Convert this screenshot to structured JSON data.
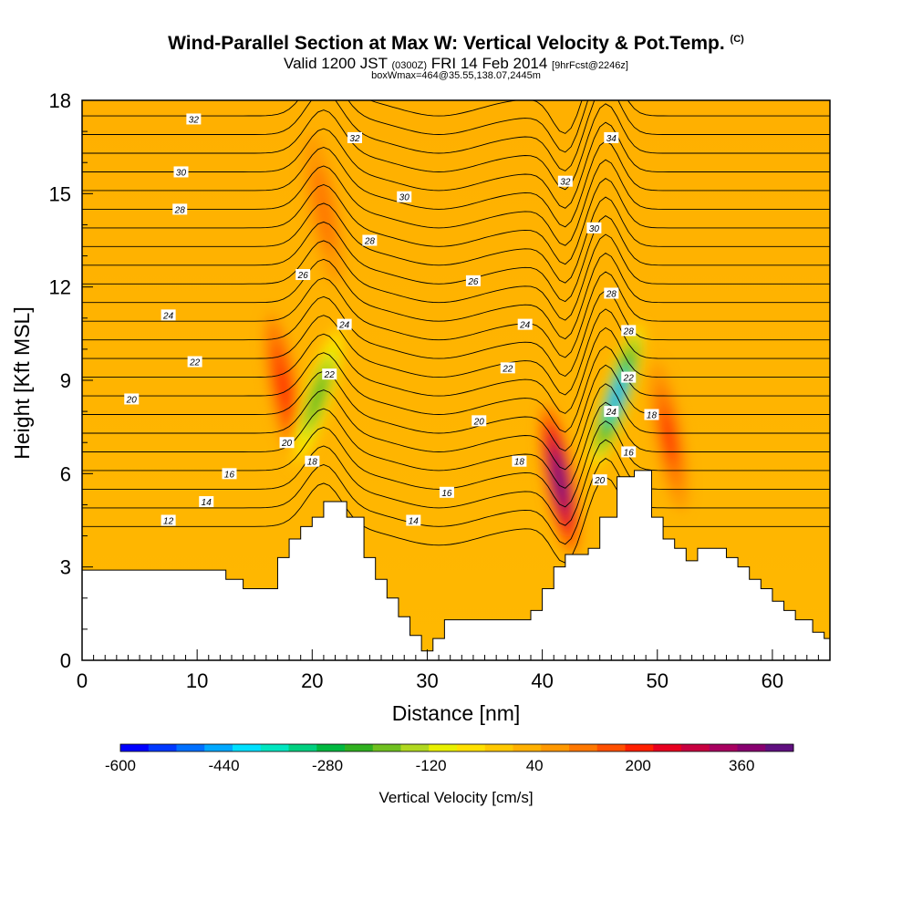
{
  "header": {
    "title": "Wind-Parallel Section at Max W: Vertical Velocity & Pot.Temp.",
    "title_mark": "(C)",
    "valid_prefix": "Valid 1200 JST",
    "valid_utc": "(0300Z)",
    "valid_date": "FRI 14 Feb 2014",
    "forecast_info": "[9hrFcst@2246z]",
    "box_info": "boxWmax=464@35.55,138.07,2445m"
  },
  "chart_data": {
    "type": "heatmap",
    "xlabel": "Distance [nm]",
    "ylabel": "Height [Kft MSL]",
    "xlim": [
      0,
      65
    ],
    "ylim": [
      0,
      18
    ],
    "x_ticks": [
      0,
      10,
      20,
      30,
      40,
      50,
      60
    ],
    "y_ticks": [
      0,
      3,
      6,
      9,
      12,
      15,
      18
    ],
    "colorbar": {
      "title": "Vertical Velocity [cm/s]",
      "ticks": [
        -600,
        -440,
        -280,
        -120,
        40,
        200,
        360
      ],
      "range": [
        -600,
        440
      ],
      "colors": [
        "#0000ff",
        "#0038ff",
        "#0070ff",
        "#00a8ff",
        "#00e0ff",
        "#00e6c0",
        "#00d080",
        "#00b840",
        "#30b020",
        "#70c020",
        "#b0d820",
        "#e8f000",
        "#ffe000",
        "#ffc800",
        "#ffb000",
        "#ff9800",
        "#ff7800",
        "#ff5000",
        "#ff2000",
        "#e80020",
        "#c80040",
        "#a80060",
        "#880070",
        "#601080"
      ]
    },
    "terrain_kft": [
      [
        0,
        2.9
      ],
      [
        10,
        2.9
      ],
      [
        12.5,
        2.9
      ],
      [
        12.5,
        2.6
      ],
      [
        14,
        2.6
      ],
      [
        14,
        2.3
      ],
      [
        17,
        2.3
      ],
      [
        17,
        3.3
      ],
      [
        18,
        3.3
      ],
      [
        18,
        3.9
      ],
      [
        19,
        3.9
      ],
      [
        19,
        4.3
      ],
      [
        20,
        4.3
      ],
      [
        20,
        4.6
      ],
      [
        21,
        4.6
      ],
      [
        21,
        5.1
      ],
      [
        23,
        5.1
      ],
      [
        23,
        4.6
      ],
      [
        24.5,
        4.6
      ],
      [
        24.5,
        3.3
      ],
      [
        25.5,
        3.3
      ],
      [
        25.5,
        2.6
      ],
      [
        26.5,
        2.6
      ],
      [
        26.5,
        2.0
      ],
      [
        27.5,
        2.0
      ],
      [
        27.5,
        1.4
      ],
      [
        28.5,
        1.4
      ],
      [
        28.5,
        0.8
      ],
      [
        29.5,
        0.8
      ],
      [
        29.5,
        0.3
      ],
      [
        30.5,
        0.3
      ],
      [
        30.5,
        0.7
      ],
      [
        31.5,
        0.7
      ],
      [
        31.5,
        1.3
      ],
      [
        33,
        1.3
      ],
      [
        33,
        1.3
      ],
      [
        39,
        1.3
      ],
      [
        39,
        1.6
      ],
      [
        40,
        1.6
      ],
      [
        40,
        2.3
      ],
      [
        41,
        2.3
      ],
      [
        41,
        3.0
      ],
      [
        42,
        3.0
      ],
      [
        42,
        3.4
      ],
      [
        43,
        3.4
      ],
      [
        43,
        3.4
      ],
      [
        44,
        3.4
      ],
      [
        44,
        3.6
      ],
      [
        45,
        3.6
      ],
      [
        45,
        4.6
      ],
      [
        46.5,
        4.6
      ],
      [
        46.5,
        5.9
      ],
      [
        48,
        5.9
      ],
      [
        48,
        6.1
      ],
      [
        49.5,
        6.1
      ],
      [
        49.5,
        4.6
      ],
      [
        50.5,
        4.6
      ],
      [
        50.5,
        3.9
      ],
      [
        51.5,
        3.9
      ],
      [
        51.5,
        3.6
      ],
      [
        52.5,
        3.6
      ],
      [
        52.5,
        3.2
      ],
      [
        53.5,
        3.2
      ],
      [
        53.5,
        3.6
      ],
      [
        56,
        3.6
      ],
      [
        56,
        3.3
      ],
      [
        57,
        3.3
      ],
      [
        57,
        3.0
      ],
      [
        58,
        3.0
      ],
      [
        58,
        2.6
      ],
      [
        59,
        2.6
      ],
      [
        59,
        2.3
      ],
      [
        60,
        2.3
      ],
      [
        60,
        1.9
      ],
      [
        61,
        1.9
      ],
      [
        61,
        1.6
      ],
      [
        62,
        1.6
      ],
      [
        62,
        1.3
      ],
      [
        63.5,
        1.3
      ],
      [
        63.5,
        0.9
      ],
      [
        64.5,
        0.9
      ],
      [
        64.5,
        0.7
      ],
      [
        65,
        0.7
      ]
    ],
    "updraft_cores": [
      {
        "x": 41.5,
        "y": 5.8,
        "w_cms": 440
      },
      {
        "x": 17.5,
        "y": 8.8,
        "w_cms": 200
      },
      {
        "x": 51.0,
        "y": 7.2,
        "w_cms": 180
      },
      {
        "x": 21.0,
        "y": 14.5,
        "w_cms": 120
      }
    ],
    "downdraft_cores": [
      {
        "x": 46.5,
        "y": 8.5,
        "w_cms": -460
      },
      {
        "x": 20.5,
        "y": 8.5,
        "w_cms": -240
      }
    ],
    "isentrope_levels": [
      12,
      13,
      14,
      15,
      16,
      17,
      18,
      19,
      20,
      21,
      22,
      23,
      24,
      25,
      26,
      27,
      28,
      29,
      30,
      31,
      32,
      33,
      34,
      35
    ],
    "contour_labels": [
      {
        "text": "32",
        "x": 9.7,
        "y": 17.4
      },
      {
        "text": "32",
        "x": 23.7,
        "y": 16.8
      },
      {
        "text": "34",
        "x": 46.0,
        "y": 16.8
      },
      {
        "text": "30",
        "x": 8.6,
        "y": 15.7
      },
      {
        "text": "32",
        "x": 42.0,
        "y": 15.4
      },
      {
        "text": "30",
        "x": 28.0,
        "y": 14.9
      },
      {
        "text": "28",
        "x": 8.5,
        "y": 14.5
      },
      {
        "text": "30",
        "x": 44.5,
        "y": 13.9
      },
      {
        "text": "28",
        "x": 25.0,
        "y": 13.5
      },
      {
        "text": "26",
        "x": 19.2,
        "y": 12.4
      },
      {
        "text": "26",
        "x": 34.0,
        "y": 12.2
      },
      {
        "text": "28",
        "x": 46.0,
        "y": 11.8
      },
      {
        "text": "24",
        "x": 7.5,
        "y": 11.1
      },
      {
        "text": "24",
        "x": 22.8,
        "y": 10.8
      },
      {
        "text": "24",
        "x": 38.5,
        "y": 10.8
      },
      {
        "text": "28",
        "x": 47.5,
        "y": 10.6
      },
      {
        "text": "22",
        "x": 9.8,
        "y": 9.6
      },
      {
        "text": "22",
        "x": 21.5,
        "y": 9.2
      },
      {
        "text": "22",
        "x": 37.0,
        "y": 9.4
      },
      {
        "text": "22",
        "x": 47.5,
        "y": 9.1
      },
      {
        "text": "20",
        "x": 4.3,
        "y": 8.4
      },
      {
        "text": "24",
        "x": 46.0,
        "y": 8.0
      },
      {
        "text": "20",
        "x": 34.5,
        "y": 7.7
      },
      {
        "text": "18",
        "x": 49.5,
        "y": 7.9
      },
      {
        "text": "20",
        "x": 17.8,
        "y": 7.0
      },
      {
        "text": "18",
        "x": 20.0,
        "y": 6.4
      },
      {
        "text": "18",
        "x": 38.0,
        "y": 6.4
      },
      {
        "text": "16",
        "x": 47.5,
        "y": 6.7
      },
      {
        "text": "16",
        "x": 12.8,
        "y": 6.0
      },
      {
        "text": "20",
        "x": 45.0,
        "y": 5.8
      },
      {
        "text": "16",
        "x": 31.7,
        "y": 5.4
      },
      {
        "text": "14",
        "x": 10.8,
        "y": 5.1
      },
      {
        "text": "14",
        "x": 28.8,
        "y": 4.5
      },
      {
        "text": "12",
        "x": 7.5,
        "y": 4.5
      }
    ]
  }
}
